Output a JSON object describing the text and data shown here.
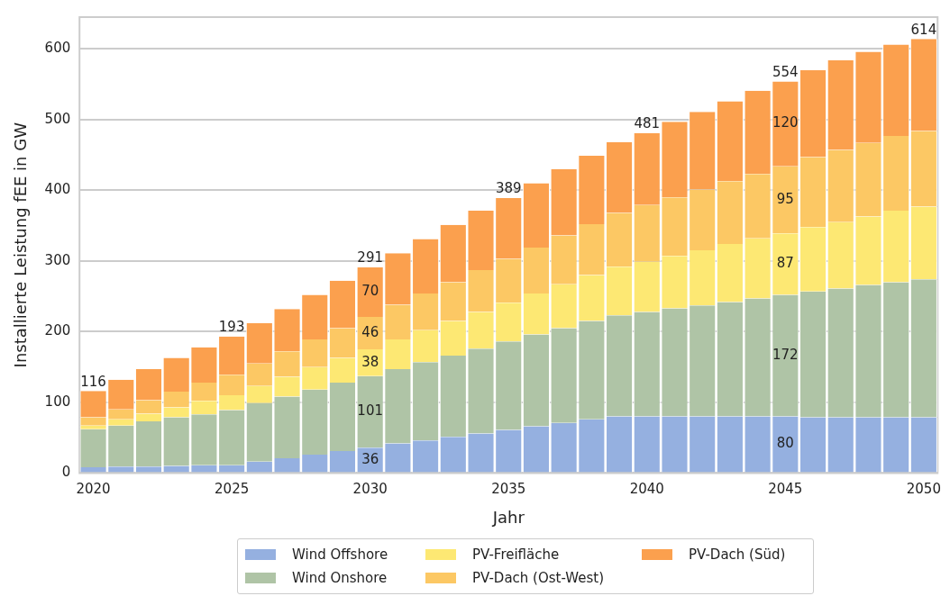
{
  "chart_data": {
    "type": "bar",
    "stacked": true,
    "xlabel": "Jahr",
    "ylabel": "Installierte Leistung fEE in GW",
    "categories": [
      "2020",
      null,
      null,
      null,
      null,
      "2025",
      null,
      null,
      null,
      null,
      "2030",
      null,
      null,
      null,
      null,
      "2035",
      null,
      null,
      null,
      null,
      "2040",
      null,
      null,
      null,
      null,
      "2045",
      null,
      null,
      null,
      null,
      "2050"
    ],
    "series": [
      {
        "name": "Wind Offshore",
        "color": "#95b0e0",
        "values": [
          8,
          9,
          9,
          10,
          11,
          11,
          16,
          21,
          26,
          31,
          36,
          42,
          46,
          51,
          56,
          61,
          66,
          71,
          76,
          80,
          80,
          80,
          80,
          80,
          80,
          80,
          79,
          79,
          79,
          79,
          79
        ],
        "value_labels": [
          null,
          null,
          null,
          null,
          null,
          null,
          null,
          null,
          null,
          null,
          "36",
          null,
          null,
          null,
          null,
          null,
          null,
          null,
          null,
          null,
          null,
          null,
          null,
          null,
          null,
          "80",
          null,
          null,
          null,
          null,
          null
        ]
      },
      {
        "name": "Wind Onshore",
        "color": "#afc4a6",
        "values": [
          54,
          58,
          64,
          69,
          72,
          78,
          83,
          87,
          92,
          97,
          101,
          105,
          111,
          115,
          120,
          125,
          130,
          134,
          139,
          143,
          148,
          153,
          157,
          162,
          167,
          172,
          178,
          182,
          187,
          191,
          195
        ],
        "value_labels": [
          null,
          null,
          null,
          null,
          null,
          null,
          null,
          null,
          null,
          null,
          "101",
          null,
          null,
          null,
          null,
          null,
          null,
          null,
          null,
          null,
          null,
          null,
          null,
          null,
          null,
          "172",
          null,
          null,
          null,
          null,
          null
        ]
      },
      {
        "name": "PV-Freifläche",
        "color": "#fde873",
        "values": [
          5,
          9,
          11,
          14,
          19,
          21,
          24,
          28,
          32,
          35,
          38,
          42,
          45,
          49,
          52,
          55,
          58,
          62,
          65,
          69,
          71,
          74,
          78,
          82,
          85,
          87,
          91,
          94,
          97,
          101,
          103
        ],
        "value_labels": [
          null,
          null,
          null,
          null,
          null,
          null,
          null,
          null,
          null,
          null,
          "38",
          null,
          null,
          null,
          null,
          null,
          null,
          null,
          null,
          null,
          null,
          null,
          null,
          null,
          null,
          "87",
          null,
          null,
          null,
          null,
          null
        ]
      },
      {
        "name": "PV-Dach (Ost-West)",
        "color": "#fcc864",
        "values": [
          12,
          14,
          19,
          22,
          26,
          29,
          32,
          36,
          39,
          42,
          46,
          49,
          52,
          55,
          59,
          62,
          65,
          69,
          72,
          76,
          80,
          83,
          86,
          89,
          91,
          95,
          99,
          102,
          104,
          106,
          107
        ],
        "value_labels": [
          null,
          null,
          null,
          null,
          null,
          null,
          null,
          null,
          null,
          null,
          "46",
          null,
          null,
          null,
          null,
          null,
          null,
          null,
          null,
          null,
          null,
          null,
          null,
          null,
          null,
          "95",
          null,
          null,
          null,
          null,
          null
        ]
      },
      {
        "name": "PV-Dach (Süd)",
        "color": "#fba04e",
        "values": [
          37,
          42,
          44,
          48,
          50,
          54,
          57,
          60,
          63,
          67,
          70,
          73,
          77,
          81,
          84,
          86,
          91,
          94,
          97,
          100,
          102,
          107,
          110,
          113,
          118,
          120,
          123,
          127,
          129,
          129,
          130
        ],
        "value_labels": [
          null,
          null,
          null,
          null,
          null,
          null,
          null,
          null,
          null,
          null,
          "70",
          null,
          null,
          null,
          null,
          null,
          null,
          null,
          null,
          null,
          null,
          null,
          null,
          null,
          null,
          "120",
          null,
          null,
          null,
          null,
          null
        ]
      }
    ],
    "totals": [
      "116",
      null,
      null,
      null,
      null,
      "193",
      null,
      null,
      null,
      null,
      "291",
      null,
      null,
      null,
      null,
      "389",
      null,
      null,
      null,
      null,
      "481",
      null,
      null,
      null,
      null,
      "554",
      null,
      null,
      null,
      null,
      "614"
    ],
    "ylim": [
      0,
      645
    ],
    "yticks": [
      0,
      100,
      200,
      300,
      400,
      500,
      600
    ],
    "grid": "y",
    "legend": "bottom"
  }
}
